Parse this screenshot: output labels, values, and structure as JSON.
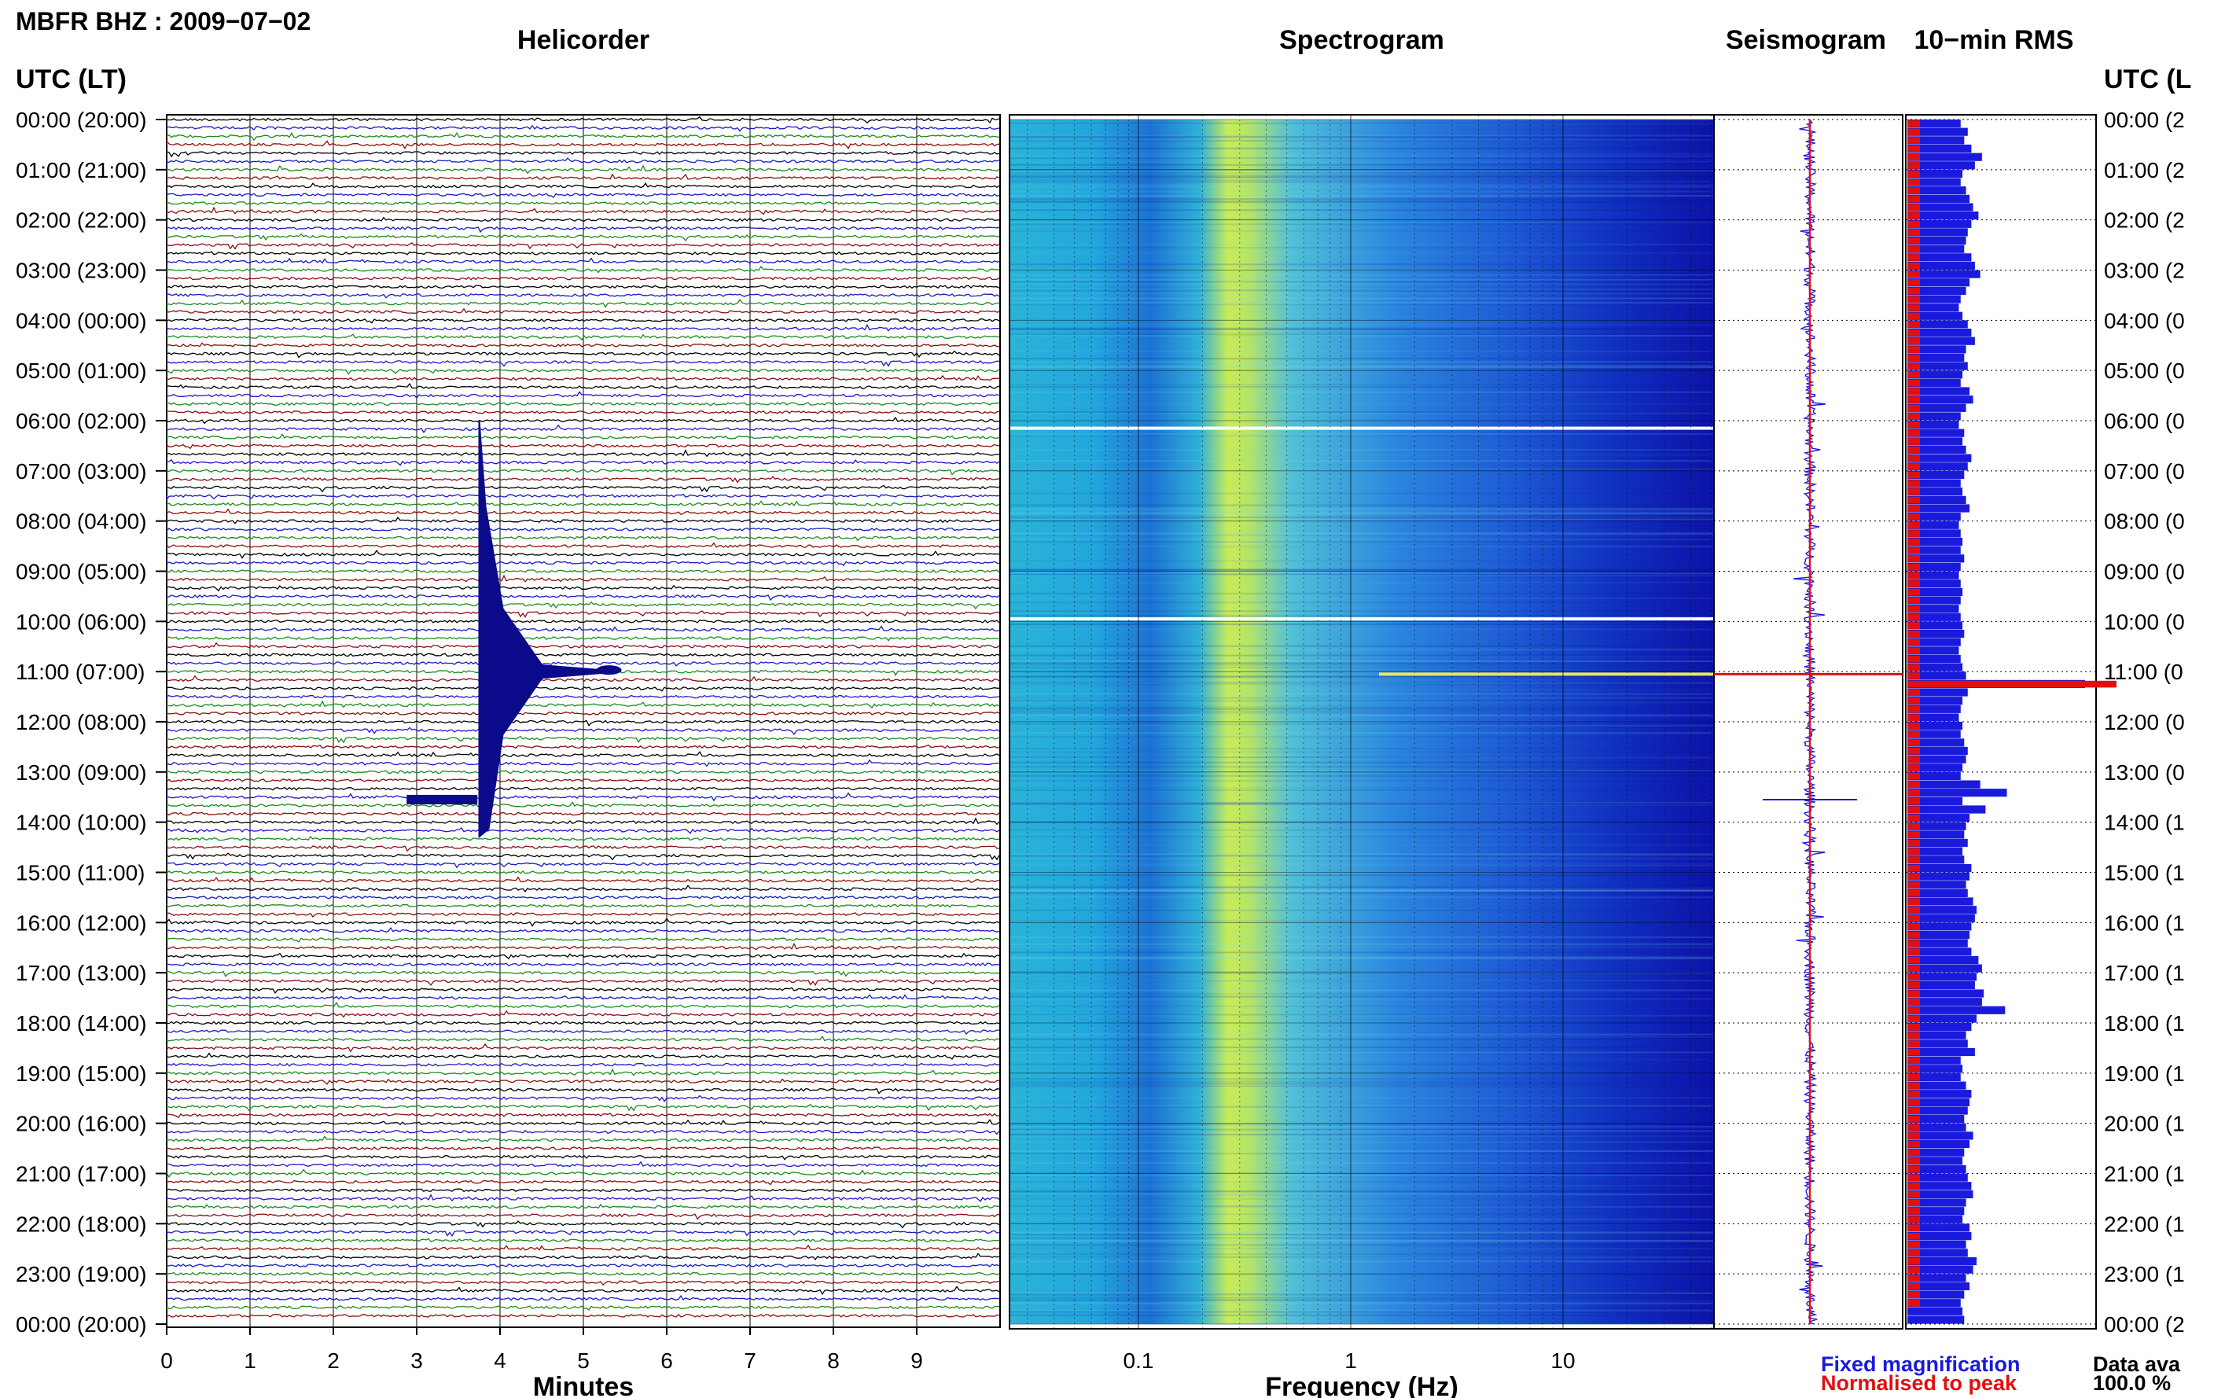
{
  "page": {
    "title": "MBFR BHZ : 2009−07−02",
    "utc_label_left": "UTC (LT)",
    "utc_label_right": "UTC (L"
  },
  "panels": {
    "helicorder": {
      "title": "Helicorder",
      "xlabel": "Minutes",
      "ticks": [
        "0",
        "1",
        "2",
        "3",
        "4",
        "5",
        "6",
        "7",
        "8",
        "9"
      ]
    },
    "spectrogram": {
      "title": "Spectrogram",
      "xlabel": "Frequency (Hz)",
      "ticks": [
        "0.1",
        "1",
        "10"
      ]
    },
    "seismogram": {
      "title": "Seismogram"
    },
    "rms": {
      "title": "10−min RMS"
    }
  },
  "legend": {
    "fixed": "Fixed magnification",
    "normalised": "Normalised to peak",
    "data_avail_label": "Data ava",
    "data_avail_value": "100.0 %"
  },
  "colors": {
    "trace_cycle": [
      "#000000",
      "#1a1ac8",
      "#1e8a1e",
      "#8a0f0f"
    ],
    "fixed": "#1a1adc",
    "normalised": "#e01010",
    "spectro_low": "#1010b8",
    "spectro_high": "#e8f050"
  },
  "chart_data": {
    "type": "heatmap",
    "hours_left": [
      "00:00 (20:00)",
      "01:00 (21:00)",
      "02:00 (22:00)",
      "03:00 (23:00)",
      "04:00 (00:00)",
      "05:00 (01:00)",
      "06:00 (02:00)",
      "07:00 (03:00)",
      "08:00 (04:00)",
      "09:00 (05:00)",
      "10:00 (06:00)",
      "11:00 (07:00)",
      "12:00 (08:00)",
      "13:00 (09:00)",
      "14:00 (10:00)",
      "15:00 (11:00)",
      "16:00 (12:00)",
      "17:00 (13:00)",
      "18:00 (14:00)",
      "19:00 (15:00)",
      "20:00 (16:00)",
      "21:00 (17:00)",
      "22:00 (18:00)",
      "23:00 (19:00)",
      "00:00 (20:00)"
    ],
    "hours_right": [
      "00:00 (2",
      "01:00 (2",
      "02:00 (2",
      "03:00 (2",
      "04:00 (0",
      "05:00 (0",
      "06:00 (0",
      "07:00 (0",
      "08:00 (0",
      "09:00 (0",
      "10:00 (0",
      "11:00 (0",
      "12:00 (0",
      "13:00 (0",
      "14:00 (1",
      "15:00 (1",
      "16:00 (1",
      "17:00 (1",
      "18:00 (1",
      "19:00 (1",
      "20:00 (1",
      "21:00 (1",
      "22:00 (1",
      "23:00 (1",
      "00:00 (2"
    ],
    "helicorder_events": [
      {
        "name": "large earthquake",
        "hour": 11.0,
        "minute": 3.75
      },
      {
        "name": "burst",
        "hour": 13.55,
        "minute": 3.2
      }
    ],
    "rms_fixed_relative": [
      0.3,
      0.34,
      0.32,
      0.36,
      0.42,
      0.38,
      0.31,
      0.3,
      0.33,
      0.35,
      0.37,
      0.4,
      0.36,
      0.34,
      0.33,
      0.32,
      0.36,
      0.38,
      0.41,
      0.35,
      0.33,
      0.3,
      0.29,
      0.31,
      0.34,
      0.36,
      0.38,
      0.33,
      0.32,
      0.34,
      0.31,
      0.3,
      0.35,
      0.37,
      0.33,
      0.3,
      0.29,
      0.32,
      0.31,
      0.33,
      0.36,
      0.34,
      0.32,
      0.3,
      0.31,
      0.33,
      0.35,
      0.3,
      0.29,
      0.3,
      0.31,
      0.3,
      0.32,
      0.3,
      0.29,
      0.3,
      0.31,
      0.3,
      0.29,
      0.3,
      0.31,
      0.32,
      0.3,
      0.29,
      0.3,
      0.31,
      0.33,
      1.0,
      0.34,
      0.31,
      0.3,
      0.29,
      0.31,
      0.3,
      0.32,
      0.34,
      0.33,
      0.31,
      0.3,
      0.41,
      0.56,
      0.31,
      0.44,
      0.35,
      0.33,
      0.32,
      0.34,
      0.31,
      0.32,
      0.36,
      0.35,
      0.33,
      0.34,
      0.37,
      0.39,
      0.38,
      0.36,
      0.35,
      0.34,
      0.36,
      0.4,
      0.42,
      0.39,
      0.38,
      0.43,
      0.42,
      0.55,
      0.39,
      0.36,
      0.33,
      0.34,
      0.38,
      0.3,
      0.31,
      0.3,
      0.33,
      0.36,
      0.35,
      0.34,
      0.32,
      0.33,
      0.37,
      0.35,
      0.32,
      0.31,
      0.33,
      0.34,
      0.36,
      0.37,
      0.33,
      0.32,
      0.31,
      0.35,
      0.36,
      0.33,
      0.34,
      0.39,
      0.37,
      0.33,
      0.35,
      0.32,
      0.3,
      0.31,
      0.32
    ],
    "rms_normalised_relative": [
      0.06,
      0.06,
      0.06,
      0.06,
      0.06,
      0.06,
      0.06,
      0.06,
      0.06,
      0.06,
      0.06,
      0.06,
      0.06,
      0.06,
      0.06,
      0.06,
      0.06,
      0.06,
      0.06,
      0.06,
      0.06,
      0.06,
      0.06,
      0.06,
      0.06,
      0.06,
      0.06,
      0.06,
      0.06,
      0.06,
      0.06,
      0.06,
      0.06,
      0.06,
      0.06,
      0.06,
      0.06,
      0.06,
      0.06,
      0.06,
      0.06,
      0.06,
      0.06,
      0.06,
      0.06,
      0.06,
      0.06,
      0.06,
      0.06,
      0.06,
      0.06,
      0.06,
      0.06,
      0.06,
      0.06,
      0.06,
      0.06,
      0.06,
      0.06,
      0.06,
      0.06,
      0.06,
      0.06,
      0.06,
      0.06,
      0.06,
      0.06,
      1.0,
      0.06,
      0.06,
      0.06,
      0.06,
      0.06,
      0.06,
      0.06,
      0.06,
      0.06,
      0.06,
      0.06,
      0.06,
      0.06,
      0.06,
      0.06,
      0.06,
      0.06,
      0.06,
      0.06,
      0.06,
      0.06,
      0.06,
      0.06,
      0.06,
      0.06,
      0.06,
      0.06,
      0.06,
      0.06,
      0.06,
      0.06,
      0.06,
      0.06,
      0.06,
      0.06,
      0.06,
      0.06,
      0.06,
      0.06,
      0.06,
      0.06,
      0.06,
      0.06,
      0.06,
      0.06,
      0.06,
      0.06,
      0.06,
      0.06,
      0.06,
      0.06,
      0.06,
      0.06,
      0.06,
      0.06,
      0.06,
      0.06,
      0.06,
      0.06,
      0.06,
      0.06,
      0.06,
      0.06,
      0.06,
      0.06,
      0.06,
      0.06,
      0.06,
      0.06,
      0.06,
      0.06,
      0.06,
      0.06,
      0.06
    ],
    "spectral_peak_hz": 0.25,
    "data_gaps_hour": [
      6.15,
      9.95
    ]
  }
}
